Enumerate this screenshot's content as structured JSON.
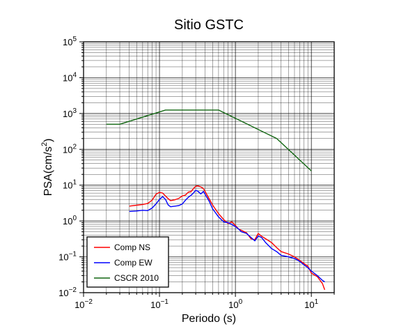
{
  "chart_data": {
    "type": "line",
    "title": "Sitio GSTC",
    "xlabel": "Periodo (s)",
    "ylabel_base": "PSA(cm/s",
    "ylabel_sup": "2",
    "ylabel_end": ")",
    "x_scale": "log",
    "y_scale": "log",
    "xlim": [
      0.01,
      20
    ],
    "ylim": [
      0.01,
      100000
    ],
    "grid": true,
    "legend_position": "bottom-left",
    "x_ticks": [
      {
        "base": "10",
        "exp": "−2",
        "value": 0.01
      },
      {
        "base": "10",
        "exp": "−1",
        "value": 0.1
      },
      {
        "base": "10",
        "exp": "0",
        "value": 1
      },
      {
        "base": "10",
        "exp": "1",
        "value": 10
      }
    ],
    "y_ticks": [
      {
        "base": "10",
        "exp": "−2",
        "value": 0.01
      },
      {
        "base": "10",
        "exp": "−1",
        "value": 0.1
      },
      {
        "base": "10",
        "exp": "0",
        "value": 1
      },
      {
        "base": "10",
        "exp": "1",
        "value": 10
      },
      {
        "base": "10",
        "exp": "2",
        "value": 100
      },
      {
        "base": "10",
        "exp": "3",
        "value": 1000
      },
      {
        "base": "10",
        "exp": "4",
        "value": 10000
      },
      {
        "base": "10",
        "exp": "5",
        "value": 100000
      }
    ],
    "series": [
      {
        "name": "Comp NS",
        "color": "#ff0000",
        "points": [
          [
            0.04,
            2.6
          ],
          [
            0.05,
            2.75
          ],
          [
            0.06,
            2.9
          ],
          [
            0.07,
            3.1
          ],
          [
            0.08,
            3.8
          ],
          [
            0.09,
            5.6
          ],
          [
            0.1,
            6.3
          ],
          [
            0.11,
            6.0
          ],
          [
            0.12,
            5.0
          ],
          [
            0.13,
            4.2
          ],
          [
            0.14,
            3.7
          ],
          [
            0.16,
            3.9
          ],
          [
            0.18,
            4.3
          ],
          [
            0.2,
            5.0
          ],
          [
            0.22,
            5.3
          ],
          [
            0.24,
            6.4
          ],
          [
            0.26,
            6.6
          ],
          [
            0.28,
            8.0
          ],
          [
            0.3,
            9.3
          ],
          [
            0.32,
            9.6
          ],
          [
            0.35,
            8.9
          ],
          [
            0.38,
            8.0
          ],
          [
            0.4,
            6.6
          ],
          [
            0.45,
            4.2
          ],
          [
            0.5,
            2.8
          ],
          [
            0.6,
            1.6
          ],
          [
            0.7,
            1.1
          ],
          [
            0.8,
            0.85
          ],
          [
            0.9,
            0.95
          ],
          [
            1.0,
            0.75
          ],
          [
            1.1,
            0.6
          ],
          [
            1.2,
            0.55
          ],
          [
            1.4,
            0.47
          ],
          [
            1.6,
            0.32
          ],
          [
            1.8,
            0.3
          ],
          [
            2.0,
            0.45
          ],
          [
            2.2,
            0.38
          ],
          [
            2.5,
            0.32
          ],
          [
            3.0,
            0.25
          ],
          [
            3.5,
            0.18
          ],
          [
            4.0,
            0.14
          ],
          [
            5.0,
            0.12
          ],
          [
            6.0,
            0.1
          ],
          [
            7.0,
            0.08
          ],
          [
            8.0,
            0.065
          ],
          [
            9.0,
            0.055
          ],
          [
            10.0,
            0.035
          ],
          [
            12.0,
            0.028
          ],
          [
            14.0,
            0.018
          ],
          [
            15.0,
            0.012
          ]
        ]
      },
      {
        "name": "Comp EW",
        "color": "#0000ff",
        "points": [
          [
            0.04,
            1.85
          ],
          [
            0.05,
            1.9
          ],
          [
            0.06,
            2.0
          ],
          [
            0.07,
            1.95
          ],
          [
            0.08,
            2.3
          ],
          [
            0.09,
            3.0
          ],
          [
            0.1,
            4.0
          ],
          [
            0.11,
            4.8
          ],
          [
            0.12,
            4.0
          ],
          [
            0.13,
            2.8
          ],
          [
            0.14,
            2.5
          ],
          [
            0.16,
            2.6
          ],
          [
            0.18,
            2.7
          ],
          [
            0.2,
            3.0
          ],
          [
            0.22,
            3.8
          ],
          [
            0.24,
            4.6
          ],
          [
            0.26,
            5.2
          ],
          [
            0.28,
            6.0
          ],
          [
            0.3,
            7.2
          ],
          [
            0.32,
            6.8
          ],
          [
            0.35,
            5.7
          ],
          [
            0.38,
            6.7
          ],
          [
            0.4,
            5.5
          ],
          [
            0.45,
            3.6
          ],
          [
            0.5,
            2.2
          ],
          [
            0.6,
            1.3
          ],
          [
            0.7,
            0.95
          ],
          [
            0.8,
            0.9
          ],
          [
            0.9,
            0.8
          ],
          [
            1.0,
            0.7
          ],
          [
            1.1,
            0.6
          ],
          [
            1.2,
            0.5
          ],
          [
            1.4,
            0.45
          ],
          [
            1.6,
            0.35
          ],
          [
            1.8,
            0.28
          ],
          [
            2.0,
            0.38
          ],
          [
            2.2,
            0.35
          ],
          [
            2.5,
            0.25
          ],
          [
            3.0,
            0.17
          ],
          [
            3.5,
            0.14
          ],
          [
            4.0,
            0.11
          ],
          [
            5.0,
            0.1
          ],
          [
            6.0,
            0.09
          ],
          [
            7.0,
            0.075
          ],
          [
            8.0,
            0.06
          ],
          [
            9.0,
            0.05
          ],
          [
            10.0,
            0.04
          ],
          [
            12.0,
            0.03
          ],
          [
            14.0,
            0.022
          ],
          [
            15.0,
            0.02
          ]
        ]
      },
      {
        "name": "CSCR 2010",
        "color": "#116611",
        "points": [
          [
            0.02,
            500
          ],
          [
            0.03,
            500
          ],
          [
            0.12,
            1250
          ],
          [
            0.6,
            1250
          ],
          [
            3.5,
            200
          ],
          [
            10.0,
            25
          ]
        ]
      }
    ]
  }
}
